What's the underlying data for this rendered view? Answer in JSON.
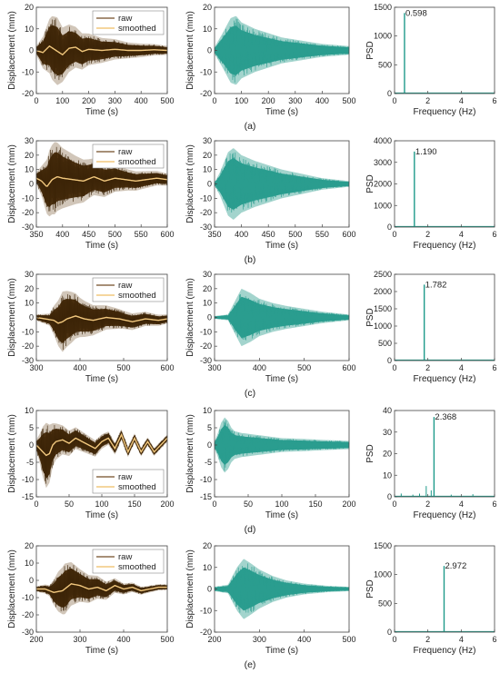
{
  "chart_data": [
    {
      "row": "a",
      "type": "line",
      "caption": "(a)",
      "raw_plot": {
        "xlabel": "Time (s)",
        "ylabel": "Displacement (mm)",
        "xlim": [
          0,
          500
        ],
        "ylim": [
          -20,
          20
        ],
        "xticks": [
          0,
          100,
          200,
          300,
          400,
          500
        ],
        "yticks": [
          -20,
          -10,
          0,
          10,
          20
        ],
        "legend": [
          "raw",
          "smoothed"
        ],
        "legend_loc": "top-right",
        "envelope": {
          "t": [
            0,
            30,
            60,
            80,
            100,
            150,
            200,
            250,
            300,
            350,
            400,
            450,
            500
          ],
          "amp": [
            2,
            8,
            14,
            15,
            12,
            9,
            7,
            5.5,
            4.5,
            3.5,
            3,
            2.5,
            2
          ]
        },
        "smoothed": {
          "t": [
            0,
            25,
            50,
            75,
            100,
            125,
            150,
            175,
            200,
            250,
            300,
            350,
            400,
            450,
            500
          ],
          "y": [
            0,
            -1,
            2,
            0,
            -2,
            1,
            1.5,
            -0.5,
            0.5,
            0,
            0.5,
            0,
            0,
            0.3,
            0
          ]
        }
      },
      "filtered_plot": {
        "xlabel": "Time (s)",
        "ylabel": "Displacement (mm)",
        "xlim": [
          0,
          500
        ],
        "ylim": [
          -20,
          20
        ],
        "xticks": [
          0,
          100,
          200,
          300,
          400,
          500
        ],
        "yticks": [
          -20,
          -10,
          0,
          10,
          20
        ],
        "envelope": {
          "t": [
            0,
            30,
            60,
            80,
            100,
            150,
            200,
            250,
            300,
            350,
            400,
            450,
            500
          ],
          "amp": [
            1.5,
            8,
            15,
            16,
            13,
            10,
            8,
            6,
            5,
            4,
            3,
            2.5,
            2
          ]
        }
      },
      "psd_plot": {
        "xlabel": "Frequency (Hz)",
        "ylabel": "PSD",
        "xlim": [
          0,
          6
        ],
        "ylim": [
          0,
          1500
        ],
        "xticks": [
          0,
          2,
          4,
          6
        ],
        "yticks": [
          0,
          500,
          1000,
          1500
        ],
        "peaks": [
          {
            "f": 0.598,
            "psd": 1400
          }
        ],
        "peak_label": "0.598"
      }
    },
    {
      "row": "b",
      "type": "line",
      "caption": "(b)",
      "raw_plot": {
        "xlabel": "Time (s)",
        "ylabel": "Displacement (mm)",
        "xlim": [
          350,
          600
        ],
        "ylim": [
          -30,
          30
        ],
        "xticks": [
          350,
          400,
          450,
          500,
          550,
          600
        ],
        "yticks": [
          -30,
          -20,
          -10,
          0,
          10,
          20,
          30
        ],
        "legend": [
          "raw",
          "smoothed"
        ],
        "legend_loc": "top-right",
        "envelope": {
          "t": [
            350,
            360,
            375,
            385,
            400,
            425,
            450,
            475,
            500,
            525,
            550,
            575,
            600
          ],
          "amp": [
            4,
            10,
            22,
            24,
            20,
            16,
            13,
            11,
            9,
            7,
            6,
            5,
            4
          ]
        },
        "smoothed": {
          "t": [
            350,
            360,
            370,
            380,
            390,
            400,
            420,
            440,
            460,
            480,
            500,
            520,
            540,
            560,
            580,
            600
          ],
          "y": [
            4,
            2,
            -2,
            3,
            5,
            4,
            3,
            2,
            5,
            2,
            4,
            3,
            2,
            3,
            4,
            3
          ]
        }
      },
      "filtered_plot": {
        "xlabel": "Time (s)",
        "ylabel": "Displacement (mm)",
        "xlim": [
          350,
          600
        ],
        "ylim": [
          -30,
          30
        ],
        "xticks": [
          350,
          400,
          450,
          500,
          550,
          600
        ],
        "yticks": [
          -30,
          -20,
          -10,
          0,
          10,
          20,
          30
        ],
        "envelope": {
          "t": [
            350,
            360,
            375,
            385,
            400,
            425,
            450,
            475,
            500,
            525,
            550,
            575,
            600
          ],
          "amp": [
            1,
            8,
            22,
            25,
            20,
            16,
            13,
            10,
            8,
            6,
            4,
            3,
            2
          ]
        }
      },
      "psd_plot": {
        "xlabel": "Frequency (Hz)",
        "ylabel": "PSD",
        "xlim": [
          0,
          6
        ],
        "ylim": [
          0,
          4000
        ],
        "xticks": [
          0,
          2,
          4,
          6
        ],
        "yticks": [
          0,
          1000,
          2000,
          3000,
          4000
        ],
        "peaks": [
          {
            "f": 1.19,
            "psd": 3500
          }
        ],
        "peak_label": "1.190"
      }
    },
    {
      "row": "c",
      "type": "line",
      "caption": "(c)",
      "raw_plot": {
        "xlabel": "Time (s)",
        "ylabel": "Displacement (mm)",
        "xlim": [
          300,
          600
        ],
        "ylim": [
          -30,
          30
        ],
        "xticks": [
          300,
          400,
          500,
          600
        ],
        "yticks": [
          -30,
          -20,
          -10,
          0,
          10,
          20,
          30
        ],
        "legend": [
          "raw",
          "smoothed"
        ],
        "legend_loc": "top-right",
        "envelope": {
          "t": [
            300,
            330,
            350,
            360,
            380,
            400,
            430,
            460,
            500,
            540,
            600
          ],
          "amp": [
            2,
            4,
            15,
            20,
            17,
            13,
            10,
            8,
            6,
            5,
            3
          ]
        },
        "smoothed": {
          "t": [
            300,
            320,
            340,
            350,
            360,
            370,
            390,
            410,
            430,
            460,
            490,
            520,
            550,
            580,
            600
          ],
          "y": [
            0,
            -1,
            -2,
            -4,
            -3,
            -1,
            1,
            -1,
            -2,
            0,
            -1,
            -3,
            -1,
            -2,
            -1
          ]
        }
      },
      "filtered_plot": {
        "xlabel": "Time (s)",
        "ylabel": "Displacement (mm)",
        "xlim": [
          300,
          600
        ],
        "ylim": [
          -30,
          30
        ],
        "xticks": [
          300,
          400,
          500,
          600
        ],
        "yticks": [
          -30,
          -20,
          -10,
          0,
          10,
          20,
          30
        ],
        "envelope": {
          "t": [
            300,
            330,
            350,
            360,
            380,
            400,
            430,
            460,
            500,
            540,
            600
          ],
          "amp": [
            1,
            2,
            14,
            20,
            17,
            13,
            10,
            8,
            6,
            4,
            2
          ]
        }
      },
      "psd_plot": {
        "xlabel": "Frequency (Hz)",
        "ylabel": "PSD",
        "xlim": [
          0,
          6
        ],
        "ylim": [
          0,
          2500
        ],
        "xticks": [
          0,
          2,
          4,
          6
        ],
        "yticks": [
          0,
          500,
          1000,
          1500,
          2000,
          2500
        ],
        "peaks": [
          {
            "f": 1.782,
            "psd": 2200
          }
        ],
        "peak_label": "1.782"
      }
    },
    {
      "row": "d",
      "type": "line",
      "caption": "(d)",
      "raw_plot": {
        "xlabel": "Time (s)",
        "ylabel": "Displacement (mm)",
        "xlim": [
          0,
          200
        ],
        "ylim": [
          -15,
          10
        ],
        "xticks": [
          0,
          50,
          100,
          150,
          200
        ],
        "yticks": [
          -15,
          -10,
          -5,
          0,
          5,
          10
        ],
        "legend": [
          "raw",
          "smoothed"
        ],
        "legend_loc": "bottom-right",
        "envelope": {
          "t": [
            0,
            5,
            10,
            15,
            20,
            25,
            30,
            40,
            60,
            80,
            100,
            130,
            160,
            200
          ],
          "amp": [
            1.5,
            4,
            7,
            9,
            8,
            6,
            5,
            4,
            3,
            2.5,
            2,
            1.5,
            1.2,
            1
          ]
        },
        "smoothed": {
          "t": [
            0,
            5,
            10,
            15,
            20,
            25,
            30,
            40,
            50,
            60,
            70,
            80,
            90,
            100,
            110,
            120,
            130,
            140,
            150,
            160,
            170,
            180,
            190,
            200
          ],
          "y": [
            0,
            -1,
            -2,
            -3,
            -2.5,
            0,
            1,
            1.5,
            0.5,
            2,
            1,
            0,
            -1,
            1,
            2,
            -1,
            3,
            -2,
            2,
            -2,
            1,
            -2,
            0,
            2
          ]
        }
      },
      "filtered_plot": {
        "xlabel": "Time (s)",
        "ylabel": "Displacement (mm)",
        "xlim": [
          0,
          200
        ],
        "ylim": [
          -15,
          10
        ],
        "xticks": [
          0,
          50,
          100,
          150,
          200
        ],
        "yticks": [
          -15,
          -10,
          -5,
          0,
          5,
          10
        ],
        "envelope": {
          "t": [
            0,
            5,
            10,
            15,
            20,
            25,
            30,
            40,
            60,
            80,
            100,
            130,
            160,
            200
          ],
          "amp": [
            1,
            3.5,
            6.5,
            8,
            7,
            5,
            4,
            3.5,
            3,
            2.5,
            2,
            1.8,
            1.5,
            1.2
          ]
        }
      },
      "psd_plot": {
        "xlabel": "Frequency (Hz)",
        "ylabel": "PSD",
        "xlim": [
          0,
          6
        ],
        "ylim": [
          0,
          40
        ],
        "xticks": [
          0,
          2,
          4,
          6
        ],
        "yticks": [
          0,
          10,
          20,
          30,
          40
        ],
        "peaks": [
          {
            "f": 2.368,
            "psd": 37
          },
          {
            "f": 1.9,
            "psd": 5
          },
          {
            "f": 2.2,
            "psd": 3
          },
          {
            "f": 1.5,
            "psd": 1.5
          },
          {
            "f": 0.4,
            "psd": 1.5
          },
          {
            "f": 1.1,
            "psd": 1
          },
          {
            "f": 3.4,
            "psd": 1
          },
          {
            "f": 4.7,
            "psd": 1.2
          }
        ],
        "peak_label": "2.368"
      }
    },
    {
      "row": "e",
      "type": "line",
      "caption": "(e)",
      "raw_plot": {
        "xlabel": "Time (s)",
        "ylabel": "Displacement (mm)",
        "xlim": [
          200,
          500
        ],
        "ylim": [
          -30,
          20
        ],
        "xticks": [
          200,
          300,
          400,
          500
        ],
        "yticks": [
          -30,
          -20,
          -10,
          0,
          10,
          20
        ],
        "legend": [
          "raw",
          "smoothed"
        ],
        "legend_loc": "top-right",
        "envelope": {
          "t": [
            200,
            230,
            250,
            265,
            280,
            300,
            330,
            360,
            400,
            450,
            500
          ],
          "amp": [
            1.5,
            3,
            11,
            14,
            12,
            9,
            7,
            5,
            3,
            2,
            1.5
          ]
        },
        "smoothed": {
          "t": [
            200,
            220,
            240,
            260,
            280,
            300,
            320,
            340,
            360,
            380,
            400,
            420,
            440,
            460,
            480,
            500
          ],
          "y": [
            -5,
            -5,
            -7,
            -6,
            -2,
            -3,
            -5,
            -4,
            -6,
            -3,
            -5,
            -4,
            -6,
            -5,
            -4,
            -4
          ]
        }
      },
      "filtered_plot": {
        "xlabel": "Time (s)",
        "ylabel": "Displacement (mm)",
        "xlim": [
          200,
          500
        ],
        "ylim": [
          -20,
          20
        ],
        "xticks": [
          200,
          300,
          400,
          500
        ],
        "yticks": [
          -20,
          -10,
          0,
          10,
          20
        ],
        "envelope": {
          "t": [
            200,
            230,
            250,
            265,
            280,
            300,
            330,
            360,
            400,
            450,
            500
          ],
          "amp": [
            1,
            2,
            10,
            14,
            12,
            9,
            6,
            4,
            2.5,
            1.5,
            1
          ]
        }
      },
      "psd_plot": {
        "xlabel": "Frequency (Hz)",
        "ylabel": "PSD",
        "xlim": [
          0,
          6
        ],
        "ylim": [
          0,
          1500
        ],
        "xticks": [
          0,
          2,
          4,
          6
        ],
        "yticks": [
          0,
          500,
          1000,
          1500
        ],
        "peaks": [
          {
            "f": 2.972,
            "psd": 1150
          }
        ],
        "peak_label": "2.972"
      }
    }
  ],
  "colors": {
    "raw": "#4a2f0f",
    "raw_dark": "#3c2407",
    "smoothed": "#f2c87e",
    "filtered": "#2a9d8f",
    "filtered_light": "#8cc9c0",
    "psd": "#1f9a8a",
    "axis": "#444444"
  }
}
